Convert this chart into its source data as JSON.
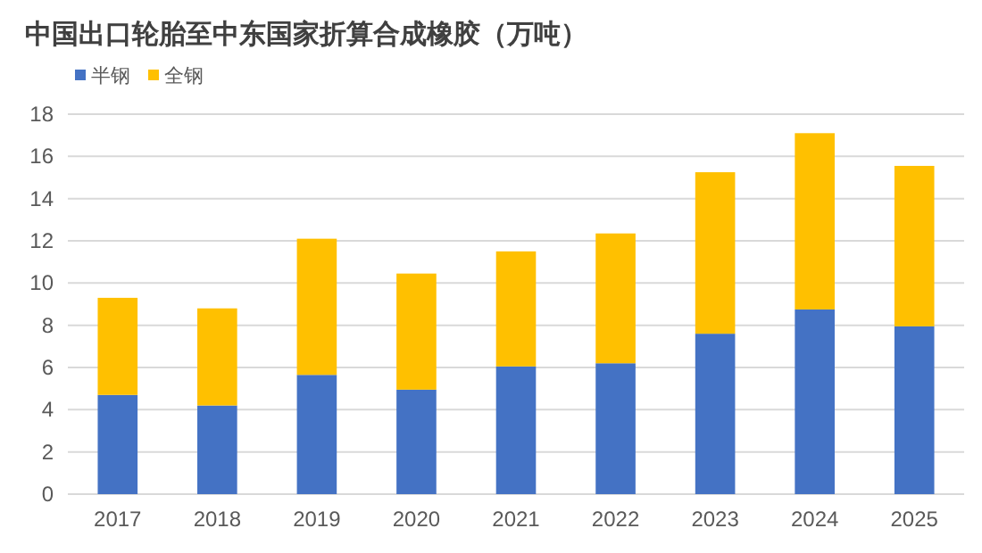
{
  "chart_data": {
    "type": "bar",
    "title": "中国出口轮胎至中东国家折算合成橡胶（万吨）",
    "stacked": true,
    "legend": "top left",
    "grid": "y",
    "categories": [
      "2017",
      "2018",
      "2019",
      "2020",
      "2021",
      "2022",
      "2023",
      "2024",
      "2025"
    ],
    "ylim": [
      0,
      18
    ],
    "yticks": [
      0,
      2,
      4,
      6,
      8,
      10,
      12,
      14,
      16,
      18
    ],
    "series": [
      {
        "name": "半钢",
        "color": "#4472c4",
        "values": [
          4.7,
          4.2,
          5.65,
          4.95,
          6.05,
          6.2,
          7.6,
          8.75,
          7.95
        ]
      },
      {
        "name": "全钢",
        "color": "#ffc000",
        "values": [
          4.6,
          4.6,
          6.45,
          5.5,
          5.45,
          6.15,
          7.65,
          8.35,
          7.6
        ]
      }
    ]
  }
}
